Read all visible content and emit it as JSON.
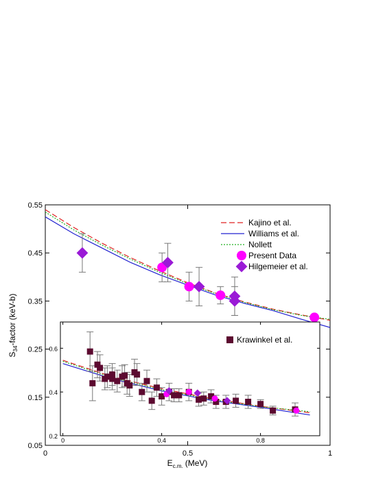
{
  "chart_data": [
    {
      "type": "scatter",
      "xlabel": [
        "E",
        "c.m.",
        "(MeV)"
      ],
      "ylabel": [
        "S",
        "34",
        "-factor (keV-b)"
      ],
      "xlim": [
        0,
        1
      ],
      "ylim": [
        0.05,
        0.55
      ],
      "xticks": [
        0,
        0.5,
        1
      ],
      "yticks": [
        0.05,
        0.15,
        0.25,
        0.35,
        0.45,
        0.55
      ],
      "series": [
        {
          "name": "Kajino et al.",
          "color": "#e02020",
          "line": "dashed",
          "x": [
            0,
            0.1,
            0.2,
            0.3,
            0.4,
            0.5,
            0.6,
            0.7,
            0.8,
            0.9,
            1.0
          ],
          "values": [
            0.54,
            0.503,
            0.47,
            0.44,
            0.413,
            0.388,
            0.366,
            0.348,
            0.333,
            0.321,
            0.31
          ]
        },
        {
          "name": "Williams et al.",
          "color": "#2020d0",
          "line": "solid",
          "x": [
            0,
            0.1,
            0.2,
            0.3,
            0.4,
            0.5,
            0.6,
            0.7,
            0.8,
            0.9,
            1.0
          ],
          "values": [
            0.525,
            0.49,
            0.46,
            0.43,
            0.405,
            0.383,
            0.362,
            0.345,
            0.33,
            0.312,
            0.295
          ]
        },
        {
          "name": "Nollett",
          "color": "#20b020",
          "line": "dotted",
          "x": [
            0,
            0.1,
            0.2,
            0.3,
            0.4,
            0.5,
            0.6,
            0.7,
            0.8,
            0.9,
            1.0
          ],
          "values": [
            0.535,
            0.498,
            0.466,
            0.437,
            0.41,
            0.386,
            0.365,
            0.347,
            0.332,
            0.32,
            0.312
          ]
        },
        {
          "name": "Present Data",
          "color": "#ff00ff",
          "marker": "circle",
          "x": [
            0.41,
            0.505,
            0.615,
            0.945
          ],
          "values": [
            0.42,
            0.38,
            0.362,
            0.316
          ],
          "errors": [
            0.03,
            0.03,
            0.018,
            0.005
          ]
        },
        {
          "name": "Hilgemeier et al.",
          "color": "#9a1ad6",
          "marker": "diamond",
          "x": [
            0.13,
            0.43,
            0.54,
            0.665,
            0.665
          ],
          "values": [
            0.45,
            0.43,
            0.38,
            0.35,
            0.36
          ],
          "errors": [
            0.04,
            0.04,
            0.04,
            0.03,
            0.04
          ]
        }
      ]
    },
    {
      "type": "scatter",
      "xlim": [
        -0.01,
        1.04
      ],
      "ylim": [
        0.2,
        0.72
      ],
      "xticks": [
        0,
        0.4,
        0.8
      ],
      "yticks": [
        0.2,
        0.4,
        0.6
      ],
      "series": [
        {
          "color": "#e02020",
          "line": "dashed",
          "x": [
            0,
            0.2,
            0.4,
            0.6,
            0.8,
            1.0
          ],
          "values": [
            0.545,
            0.47,
            0.415,
            0.37,
            0.335,
            0.305
          ]
        },
        {
          "color": "#2020d0",
          "line": "solid",
          "x": [
            0,
            0.2,
            0.4,
            0.6,
            0.8,
            1.0
          ],
          "values": [
            0.53,
            0.46,
            0.405,
            0.362,
            0.33,
            0.295
          ]
        },
        {
          "color": "#20b020",
          "line": "dotted",
          "x": [
            0,
            0.2,
            0.4,
            0.6,
            0.8,
            1.0
          ],
          "values": [
            0.54,
            0.466,
            0.41,
            0.366,
            0.333,
            0.31
          ]
        },
        {
          "name": "Krawinkel et al.",
          "color": "#5c0a30",
          "marker": "square",
          "x": [
            0.11,
            0.12,
            0.14,
            0.15,
            0.17,
            0.18,
            0.2,
            0.2,
            0.22,
            0.24,
            0.25,
            0.26,
            0.27,
            0.29,
            0.3,
            0.32,
            0.34,
            0.36,
            0.38,
            0.4,
            0.43,
            0.45,
            0.47,
            0.51,
            0.55,
            0.57,
            0.6,
            0.62,
            0.66,
            0.7,
            0.75,
            0.8,
            0.85,
            0.94
          ],
          "values": [
            0.585,
            0.44,
            0.525,
            0.51,
            0.46,
            0.47,
            0.48,
            0.46,
            0.45,
            0.47,
            0.475,
            0.44,
            0.43,
            0.49,
            0.48,
            0.4,
            0.45,
            0.36,
            0.42,
            0.38,
            0.4,
            0.385,
            0.385,
            0.4,
            0.365,
            0.37,
            0.38,
            0.355,
            0.355,
            0.36,
            0.355,
            0.345,
            0.315,
            0.32
          ],
          "errors": [
            0.09,
            0.08,
            0.06,
            0.06,
            0.05,
            0.05,
            0.05,
            0.05,
            0.05,
            0.05,
            0.05,
            0.05,
            0.05,
            0.06,
            0.05,
            0.04,
            0.05,
            0.04,
            0.04,
            0.04,
            0.04,
            0.03,
            0.03,
            0.04,
            0.03,
            0.03,
            0.03,
            0.03,
            0.03,
            0.03,
            0.03,
            0.02,
            0.02,
            0.03
          ]
        },
        {
          "color": "#ff00ff",
          "marker": "circle",
          "x": [
            0.42,
            0.51,
            0.615,
            0.945
          ],
          "values": [
            0.39,
            0.4,
            0.37,
            0.315
          ]
        },
        {
          "color": "#9a1ad6",
          "marker": "diamond",
          "x": [
            0.43,
            0.545,
            0.665
          ],
          "values": [
            0.405,
            0.395,
            0.36
          ]
        }
      ]
    }
  ]
}
